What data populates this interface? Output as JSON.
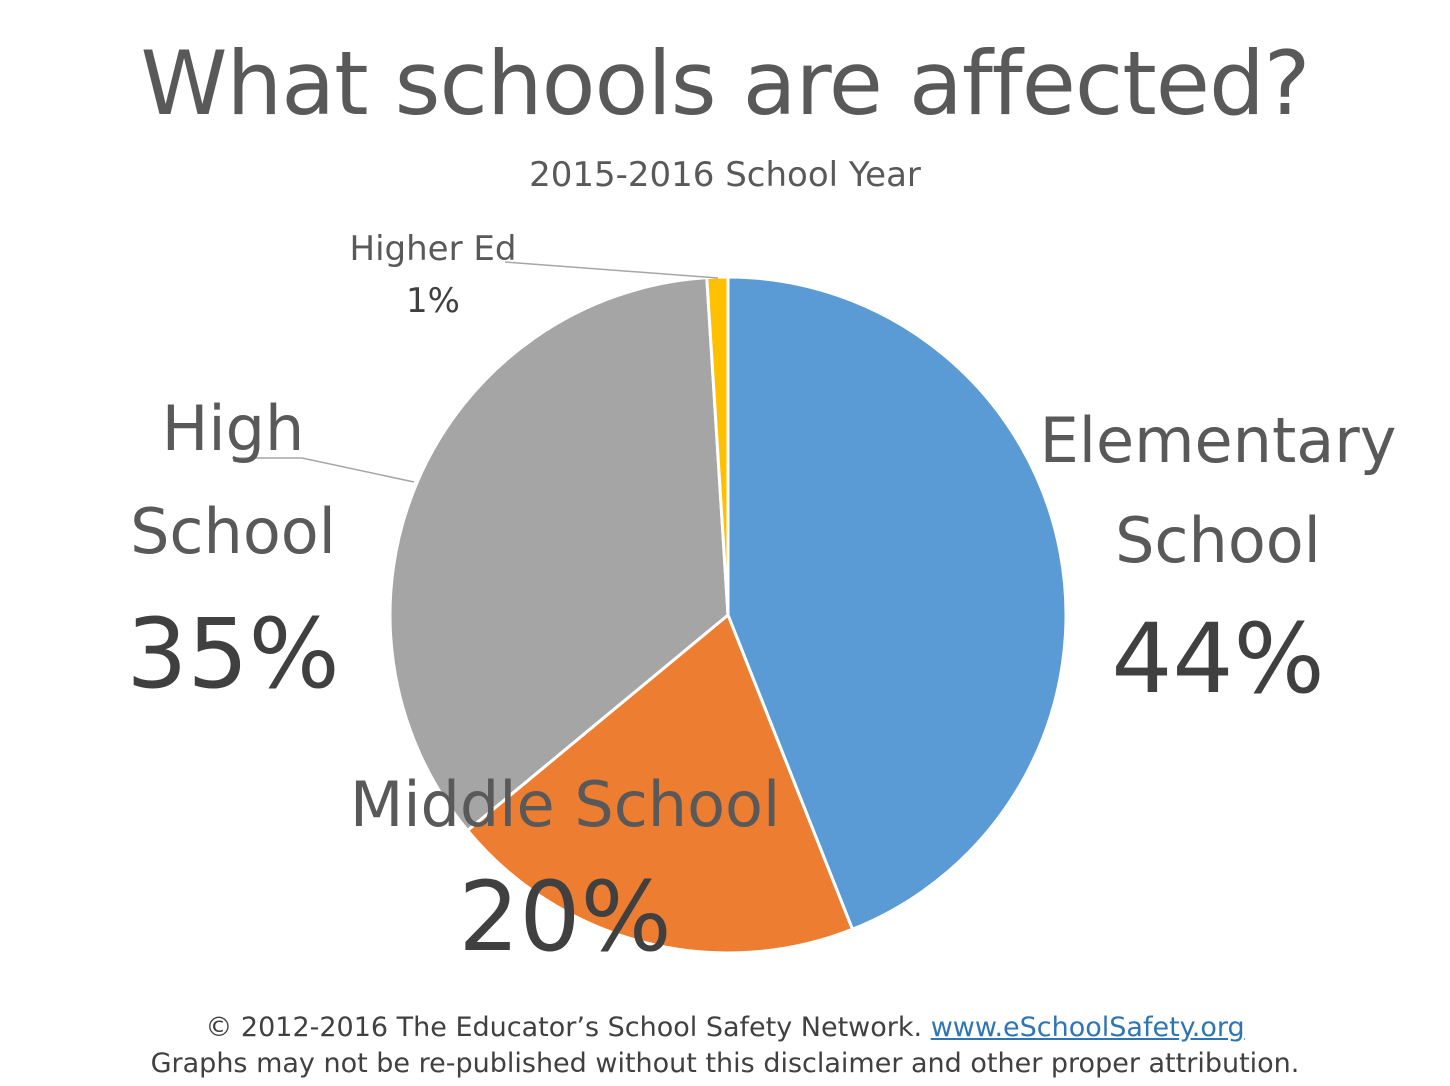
{
  "title": "What schools are affected?",
  "subtitle": "2015-2016 School Year",
  "chart_data": {
    "type": "pie",
    "title": "What schools are affected?",
    "subtitle": "2015-2016 School Year",
    "slices": [
      {
        "label": "Elementary School",
        "lines": [
          "Elementary",
          "School"
        ],
        "value": 44,
        "value_label": "44%",
        "color": "#5b9bd5"
      },
      {
        "label": "Middle School",
        "lines": [
          "Middle School"
        ],
        "value": 20,
        "value_label": "20%",
        "color": "#ed7d31"
      },
      {
        "label": "High School",
        "lines": [
          "High",
          "School"
        ],
        "value": 35,
        "value_label": "35%",
        "color": "#a5a5a5"
      },
      {
        "label": "Higher Ed",
        "lines": [
          "Higher Ed"
        ],
        "value": 1,
        "value_label": "1%",
        "color": "#ffc000"
      }
    ],
    "start_angle": "12 o'clock",
    "direction": "clockwise"
  },
  "footer": {
    "copyright": "© 2012-2016 The Educator’s School Safety Network.",
    "link_text": "www.eSchoolSafety.org",
    "disclaimer": "Graphs may not be re-published without this disclaimer and other proper attribution."
  }
}
